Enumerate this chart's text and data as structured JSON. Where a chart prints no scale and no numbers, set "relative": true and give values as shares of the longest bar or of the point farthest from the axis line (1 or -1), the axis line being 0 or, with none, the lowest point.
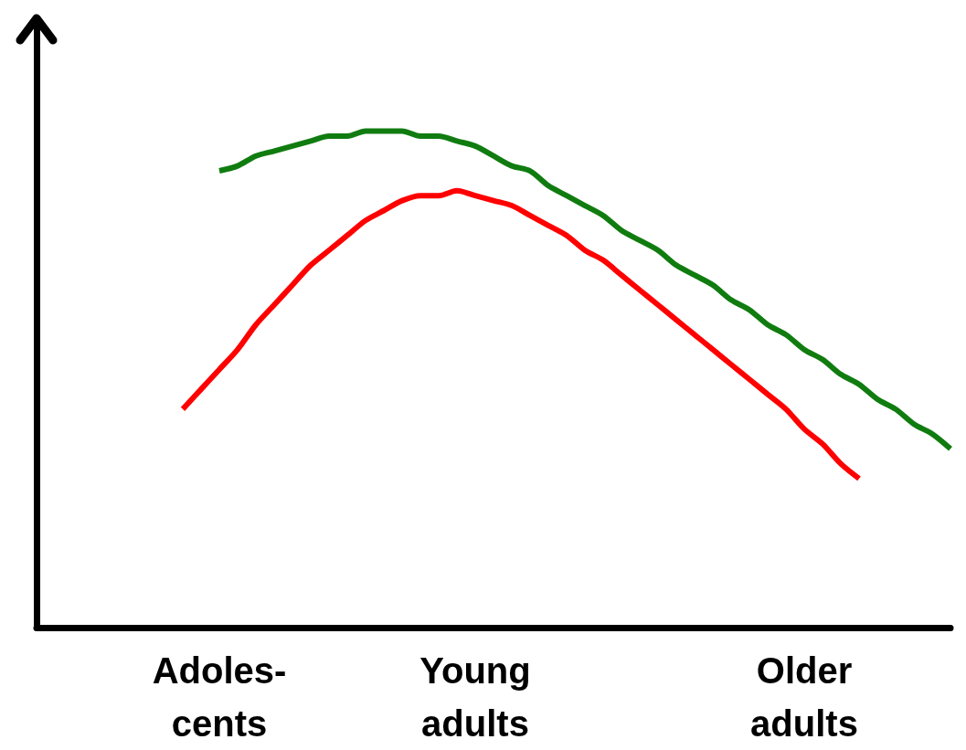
{
  "chart_data": {
    "type": "line",
    "relative": true,
    "categories": [
      null,
      null,
      null,
      null,
      null,
      null,
      null,
      null,
      null,
      null,
      "Adoles-\ncents",
      null,
      null,
      null,
      null,
      null,
      null,
      null,
      null,
      null,
      null,
      null,
      null,
      null,
      "Young\nadults",
      null,
      null,
      null,
      null,
      null,
      null,
      null,
      null,
      null,
      null,
      null,
      null,
      null,
      null,
      null,
      null,
      null,
      "Older\nadults",
      null,
      null,
      null,
      null,
      null,
      null,
      null,
      null
    ],
    "series": [
      {
        "color": "#107c10",
        "values": [
          null,
          null,
          null,
          null,
          null,
          null,
          null,
          null,
          null,
          null,
          0.92,
          0.93,
          0.95,
          0.96,
          0.97,
          0.98,
          0.99,
          0.99,
          1.0,
          1.0,
          1.0,
          0.99,
          0.99,
          0.98,
          0.97,
          0.95,
          0.93,
          0.92,
          0.89,
          0.87,
          0.85,
          0.83,
          0.8,
          0.78,
          0.76,
          0.73,
          0.71,
          0.69,
          0.66,
          0.64,
          0.61,
          0.59,
          0.56,
          0.54,
          0.51,
          0.49,
          0.46,
          0.44,
          0.41,
          0.39,
          0.36
        ]
      },
      {
        "color": "#ff0000",
        "values": [
          null,
          null,
          null,
          null,
          null,
          null,
          null,
          null,
          0.44,
          0.48,
          0.52,
          0.56,
          0.61,
          0.65,
          0.69,
          0.73,
          0.76,
          0.79,
          0.82,
          0.84,
          0.86,
          0.87,
          0.87,
          0.88,
          0.87,
          0.86,
          0.85,
          0.83,
          0.81,
          0.79,
          0.76,
          0.74,
          0.71,
          0.68,
          0.65,
          0.62,
          0.59,
          0.56,
          0.53,
          0.5,
          0.47,
          0.44,
          0.4,
          0.37,
          0.33,
          0.3,
          null,
          null,
          null,
          null,
          null
        ]
      }
    ],
    "marker": "none",
    "line_style": "solid",
    "grid": false
  }
}
